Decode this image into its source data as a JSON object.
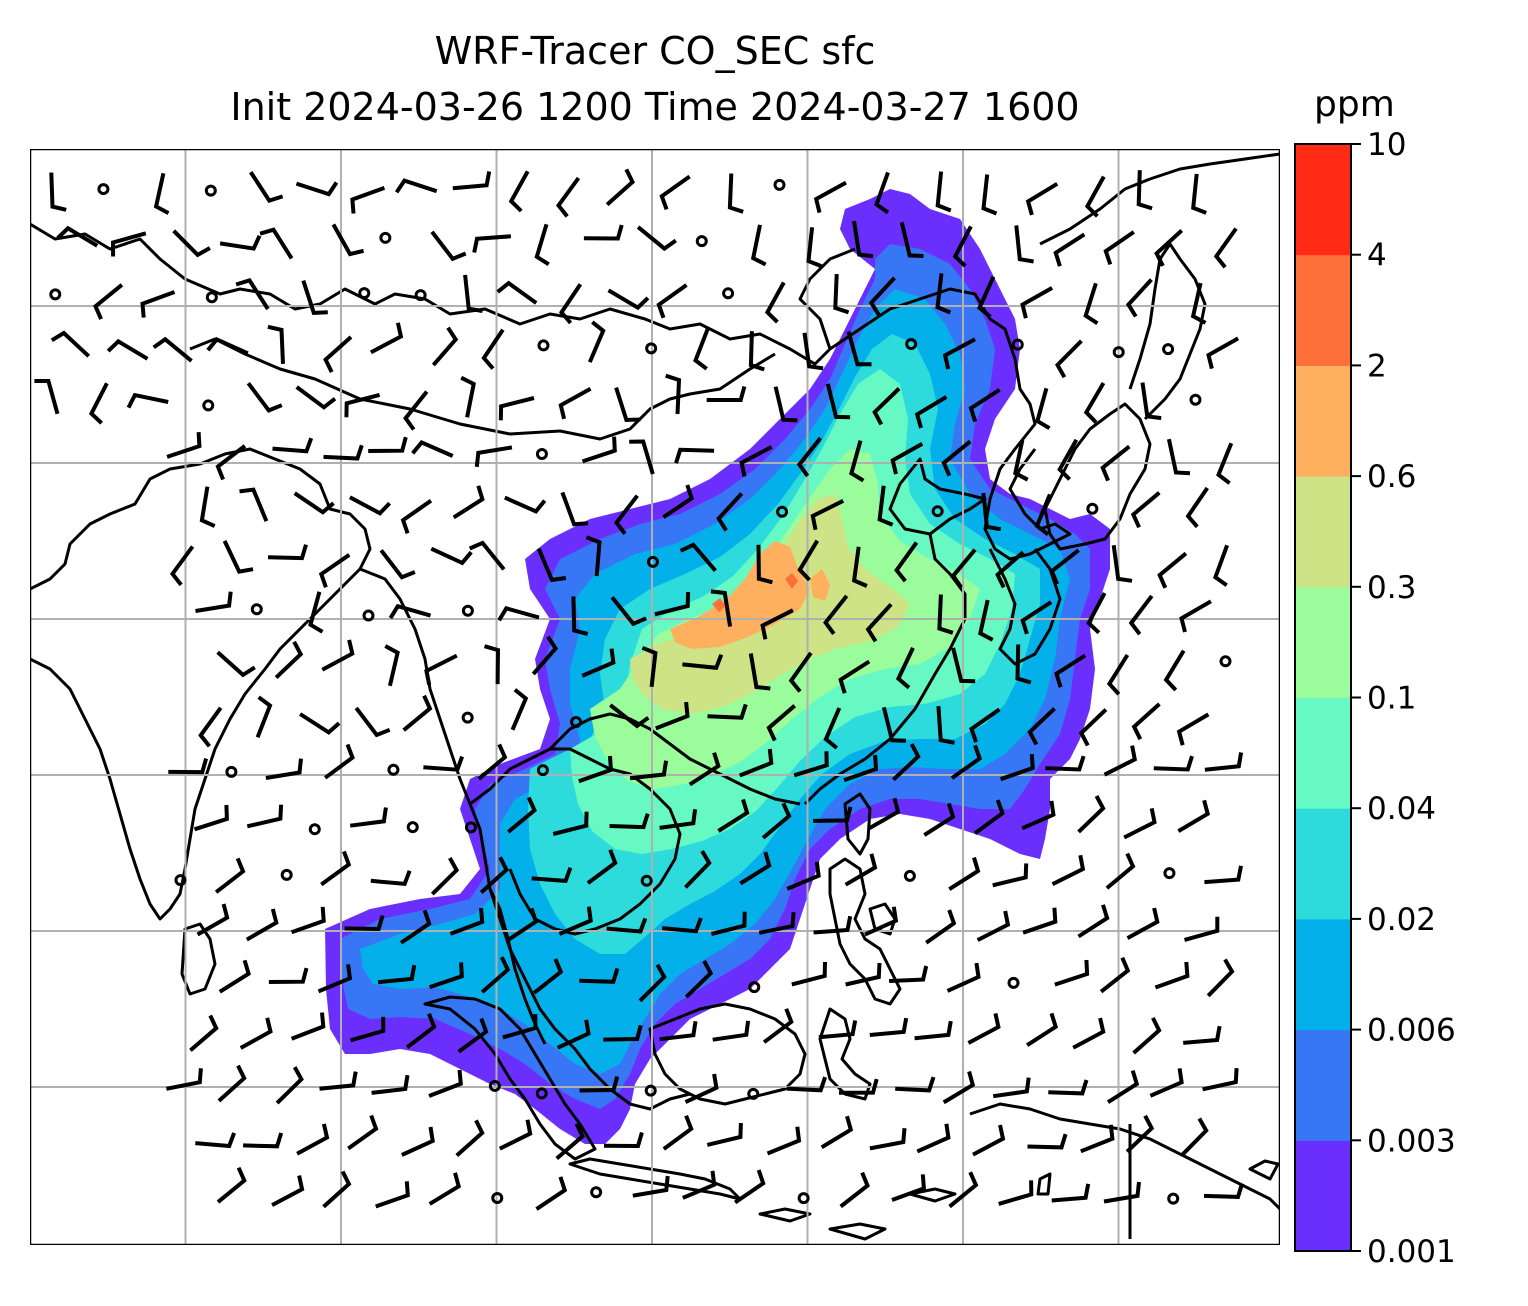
{
  "title": {
    "line1": "WRF-Tracer CO_SEC sfc",
    "line2": "Init 2024-03-26 1200 Time 2024-03-27 1600"
  },
  "colorbar": {
    "unit": "ppm",
    "ticks": [
      "0.001",
      "0.003",
      "0.006",
      "0.02",
      "0.04",
      "0.1",
      "0.3",
      "0.6",
      "2",
      "4",
      "10"
    ],
    "colors": [
      "#6a2ffc",
      "#3777f5",
      "#04b0ea",
      "#2ddbdd",
      "#66f9c3",
      "#9afc9b",
      "#cde385",
      "#ffb05e",
      "#ff6f39",
      "#ff2b14"
    ]
  },
  "map": {
    "gridlines": true,
    "field": "CO_SEC tracer concentration, surface",
    "overlay": "wind barbs"
  }
}
